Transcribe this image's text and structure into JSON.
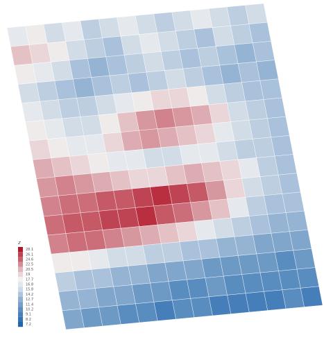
{
  "chart_data": {
    "type": "heatmap",
    "colorscale": [
      "#2166ac",
      "#f2f2f2",
      "#b2182b"
    ],
    "legend": {
      "title": "z",
      "values": [
        28.1,
        26.1,
        24.6,
        22.5,
        20.5,
        19,
        17.7,
        16.8,
        15.8,
        14.2,
        12.7,
        11.4,
        10.2,
        9.1,
        8.2,
        7.2
      ]
    },
    "z": [
      [
        17,
        18,
        16,
        17,
        15,
        16,
        17,
        16,
        15,
        16,
        17,
        16,
        15,
        16
      ],
      [
        20,
        19,
        18,
        16,
        15,
        14,
        16,
        17,
        16,
        15,
        14,
        16,
        15,
        14
      ],
      [
        18,
        17,
        16,
        14,
        13,
        14,
        15,
        16,
        15,
        14,
        15,
        14,
        13,
        14
      ],
      [
        16,
        15,
        14,
        13,
        14,
        15,
        14,
        15,
        16,
        15,
        14,
        13,
        14,
        13
      ],
      [
        17,
        16,
        15,
        15,
        16,
        17,
        18,
        19,
        19,
        18,
        16,
        15,
        14,
        14
      ],
      [
        18,
        17,
        16,
        16,
        18,
        20,
        22,
        23,
        22,
        21,
        19,
        16,
        15,
        14
      ],
      [
        19,
        18,
        17,
        17,
        19,
        21,
        22,
        21,
        20,
        19,
        17,
        16,
        15,
        14
      ],
      [
        21,
        20,
        19,
        18,
        17,
        17,
        16,
        16,
        17,
        17,
        16,
        15,
        15,
        14
      ],
      [
        22,
        23,
        22,
        21,
        20,
        19,
        19,
        20,
        21,
        20,
        19,
        17,
        15,
        14
      ],
      [
        23,
        24,
        24,
        25,
        25,
        26,
        27,
        26,
        25,
        22,
        19,
        16,
        15,
        14
      ],
      [
        24,
        25,
        25,
        26,
        26,
        27,
        25,
        24,
        22,
        20,
        17,
        15,
        14,
        14
      ],
      [
        23,
        24,
        24,
        23,
        22,
        21,
        20,
        19,
        17,
        16,
        15,
        14,
        13,
        13
      ],
      [
        18,
        18,
        17,
        16,
        16,
        15,
        15,
        14,
        14,
        13,
        13,
        12,
        12,
        12
      ],
      [
        15,
        14,
        14,
        13,
        13,
        12,
        12,
        12,
        11,
        11,
        11,
        11,
        10,
        11
      ],
      [
        13,
        13,
        12,
        12,
        11,
        11,
        10,
        10,
        11,
        10,
        10,
        10,
        10,
        10
      ],
      [
        12,
        11,
        11,
        10,
        10,
        9,
        10,
        10,
        9,
        9,
        9,
        9,
        10,
        9
      ]
    ]
  }
}
